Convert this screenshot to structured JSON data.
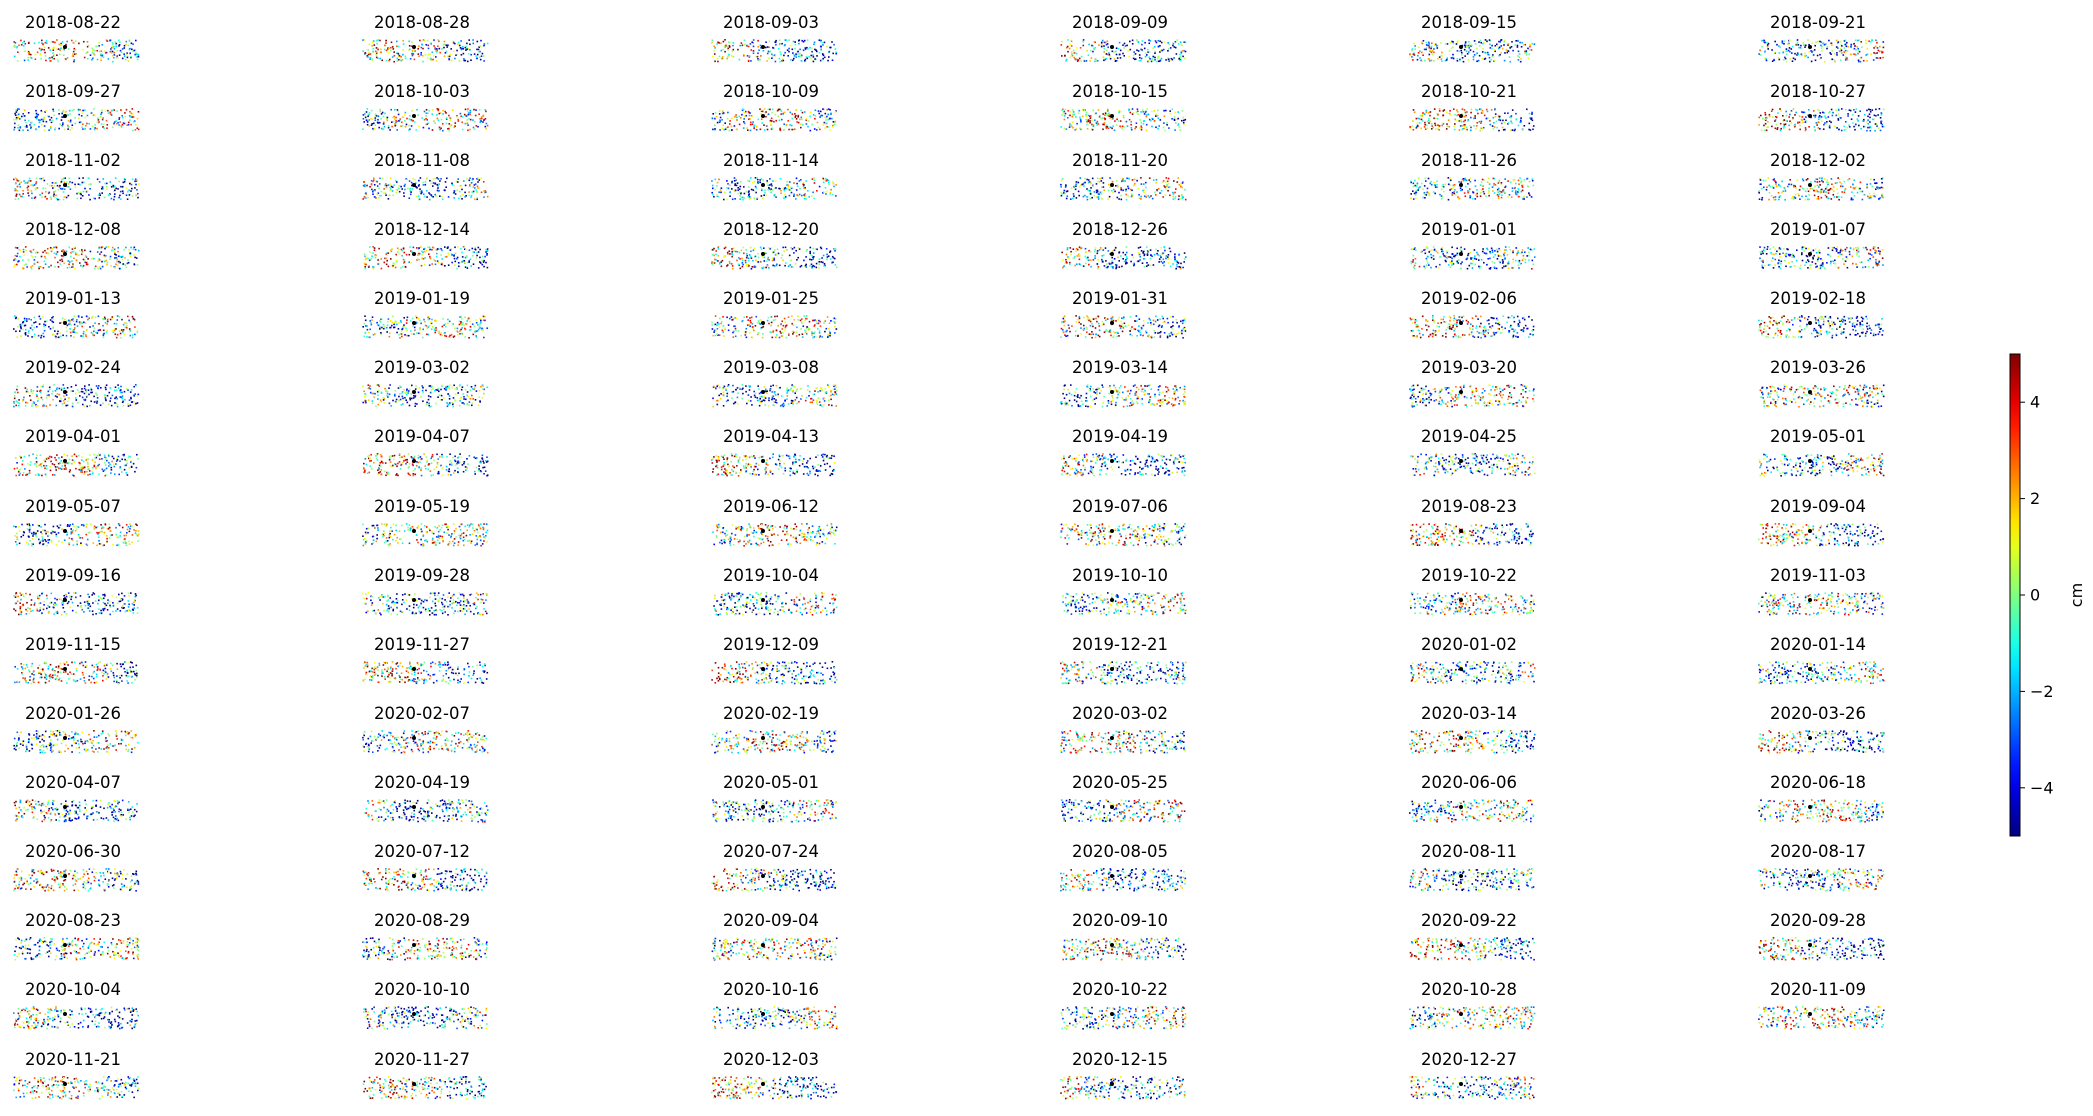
{
  "chart_data": {
    "type": "scatter",
    "description_of_layout": "small-multiples",
    "panel_titles": [
      "2018-08-22",
      "2018-08-28",
      "2018-09-03",
      "2018-09-09",
      "2018-09-15",
      "2018-09-21",
      "2018-09-27",
      "2018-10-03",
      "2018-10-09",
      "2018-10-15",
      "2018-10-21",
      "2018-10-27",
      "2018-11-02",
      "2018-11-08",
      "2018-11-14",
      "2018-11-20",
      "2018-11-26",
      "2018-12-02",
      "2018-12-08",
      "2018-12-14",
      "2018-12-20",
      "2018-12-26",
      "2019-01-01",
      "2019-01-07",
      "2019-01-13",
      "2019-01-19",
      "2019-01-25",
      "2019-01-31",
      "2019-02-06",
      "2019-02-18",
      "2019-02-24",
      "2019-03-02",
      "2019-03-08",
      "2019-03-14",
      "2019-03-20",
      "2019-03-26",
      "2019-04-01",
      "2019-04-07",
      "2019-04-13",
      "2019-04-19",
      "2019-04-25",
      "2019-05-01",
      "2019-05-07",
      "2019-05-19",
      "2019-06-12",
      "2019-07-06",
      "2019-08-23",
      "2019-09-04",
      "2019-09-16",
      "2019-09-28",
      "2019-10-04",
      "2019-10-10",
      "2019-10-22",
      "2019-11-03",
      "2019-11-15",
      "2019-11-27",
      "2019-12-09",
      "2019-12-21",
      "2020-01-02",
      "2020-01-14",
      "2020-01-26",
      "2020-02-07",
      "2020-02-19",
      "2020-03-02",
      "2020-03-14",
      "2020-03-26",
      "2020-04-07",
      "2020-04-19",
      "2020-05-01",
      "2020-05-25",
      "2020-06-06",
      "2020-06-18",
      "2020-06-30",
      "2020-07-12",
      "2020-07-24",
      "2020-08-05",
      "2020-08-11",
      "2020-08-17",
      "2020-08-23",
      "2020-08-29",
      "2020-09-04",
      "2020-09-10",
      "2020-09-22",
      "2020-09-28",
      "2020-10-04",
      "2020-10-10",
      "2020-10-16",
      "2020-10-22",
      "2020-10-28",
      "2020-11-09",
      "2020-11-21",
      "2020-11-27",
      "2020-12-03",
      "2020-12-15",
      "2020-12-27"
    ],
    "grid": false,
    "axes_visible": false,
    "colormap": "jet",
    "color_range": [
      -5,
      5
    ],
    "colorbar": {
      "label": "cm",
      "ticks": [
        4,
        2,
        0,
        -2,
        -4
      ],
      "tick_labels": [
        "4",
        "2",
        "0",
        "−2",
        "−4"
      ],
      "placement": "right"
    },
    "reference_point_color": "#000000"
  }
}
